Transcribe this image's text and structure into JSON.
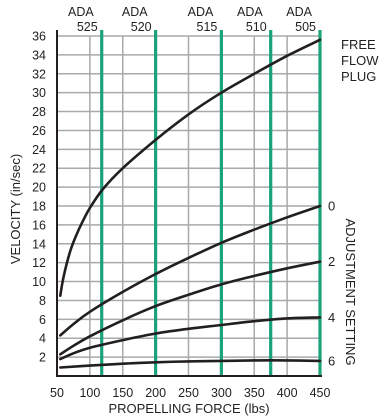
{
  "chart_data": {
    "type": "line",
    "title": "",
    "xlabel": "PROPELLING FORCE (lbs)",
    "ylabel": "VELOCITY (in/sec)",
    "xlim": [
      50,
      450
    ],
    "ylim": [
      0,
      37
    ],
    "x_ticks": [
      50,
      100,
      150,
      200,
      250,
      300,
      350,
      400,
      450
    ],
    "y_ticks": [
      2,
      4,
      6,
      8,
      10,
      12,
      14,
      16,
      18,
      20,
      22,
      24,
      26,
      28,
      30,
      32,
      34,
      36
    ],
    "grid": true,
    "ada_color": "#1aa37a",
    "ada_lines": [
      {
        "top": "ADA",
        "bottom": "525",
        "x": 118
      },
      {
        "top": "ADA",
        "bottom": "520",
        "x": 200
      },
      {
        "top": "ADA",
        "bottom": "515",
        "x": 300
      },
      {
        "top": "ADA",
        "bottom": "510",
        "x": 375
      },
      {
        "top": "ADA",
        "bottom": "505",
        "x": 450
      }
    ],
    "right_title": "ADJUSTMENT SETTING",
    "series": [
      {
        "name": "FREE FLOW PLUG",
        "label_lines": [
          "FREE",
          "FLOW",
          "PLUG"
        ],
        "x": [
          55,
          60,
          70,
          80,
          90,
          100,
          120,
          150,
          200,
          250,
          300,
          350,
          400,
          450
        ],
        "y": [
          8.5,
          10.5,
          13.2,
          15.0,
          16.5,
          17.8,
          19.8,
          22.0,
          25.0,
          27.7,
          30.0,
          32.0,
          33.9,
          35.6
        ]
      },
      {
        "name": "0",
        "x": [
          55,
          75,
          100,
          150,
          200,
          250,
          300,
          350,
          400,
          450
        ],
        "y": [
          4.3,
          5.5,
          6.8,
          8.9,
          10.8,
          12.5,
          14.1,
          15.5,
          16.8,
          18.0
        ]
      },
      {
        "name": "2",
        "x": [
          55,
          75,
          100,
          150,
          200,
          250,
          300,
          350,
          400,
          450
        ],
        "y": [
          2.3,
          3.2,
          4.2,
          5.9,
          7.4,
          8.6,
          9.7,
          10.6,
          11.4,
          12.1
        ]
      },
      {
        "name": "4",
        "x": [
          55,
          75,
          100,
          150,
          200,
          250,
          300,
          350,
          400,
          450
        ],
        "y": [
          1.8,
          2.4,
          3.0,
          3.8,
          4.5,
          5.0,
          5.4,
          5.8,
          6.1,
          6.2
        ]
      },
      {
        "name": "6",
        "x": [
          55,
          100,
          150,
          200,
          250,
          300,
          350,
          400,
          450
        ],
        "y": [
          0.9,
          1.1,
          1.3,
          1.45,
          1.55,
          1.6,
          1.65,
          1.65,
          1.6
        ]
      }
    ]
  }
}
